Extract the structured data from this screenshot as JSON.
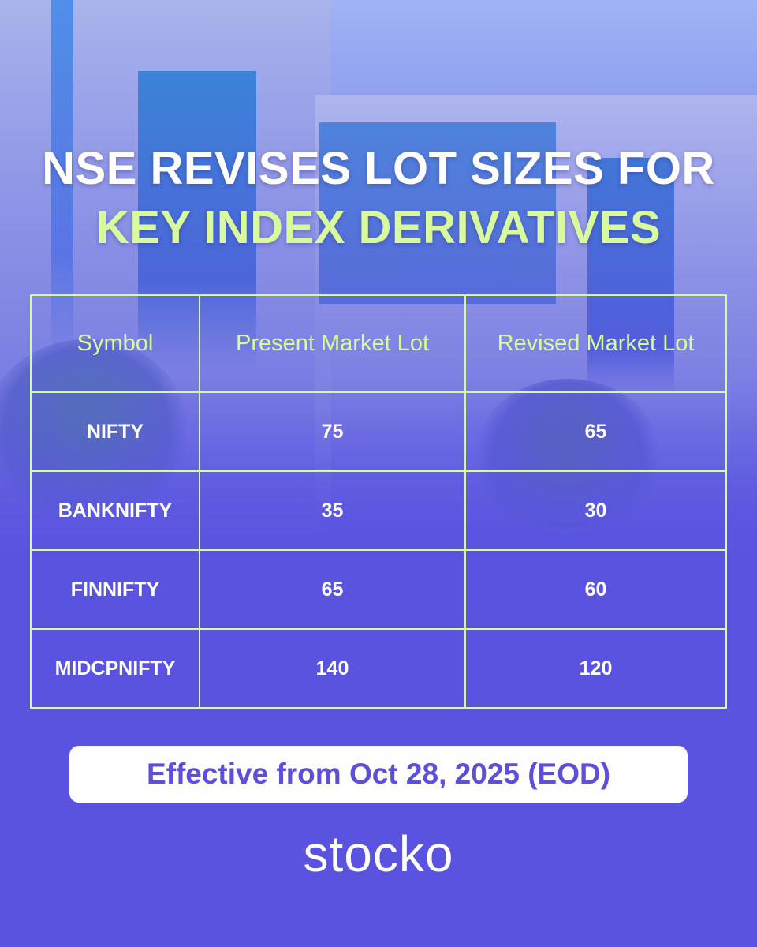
{
  "title": {
    "line1": "NSE REVISES LOT SIZES FOR",
    "line2": "KEY INDEX DERIVATIVES"
  },
  "table": {
    "headers": [
      "Symbol",
      "Present Market Lot",
      "Revised Market Lot"
    ],
    "rows": [
      [
        "NIFTY",
        "75",
        "65"
      ],
      [
        "BANKNIFTY",
        "35",
        "30"
      ],
      [
        "FINNIFTY",
        "65",
        "60"
      ],
      [
        "MIDCPNIFTY",
        "140",
        "120"
      ]
    ]
  },
  "effective": "Effective from Oct 28, 2025 (EOD)",
  "brand": "stocko",
  "colors": {
    "background": "#5a53e0",
    "accent": "#d9f99d",
    "pill_text": "#5b4fdc"
  }
}
